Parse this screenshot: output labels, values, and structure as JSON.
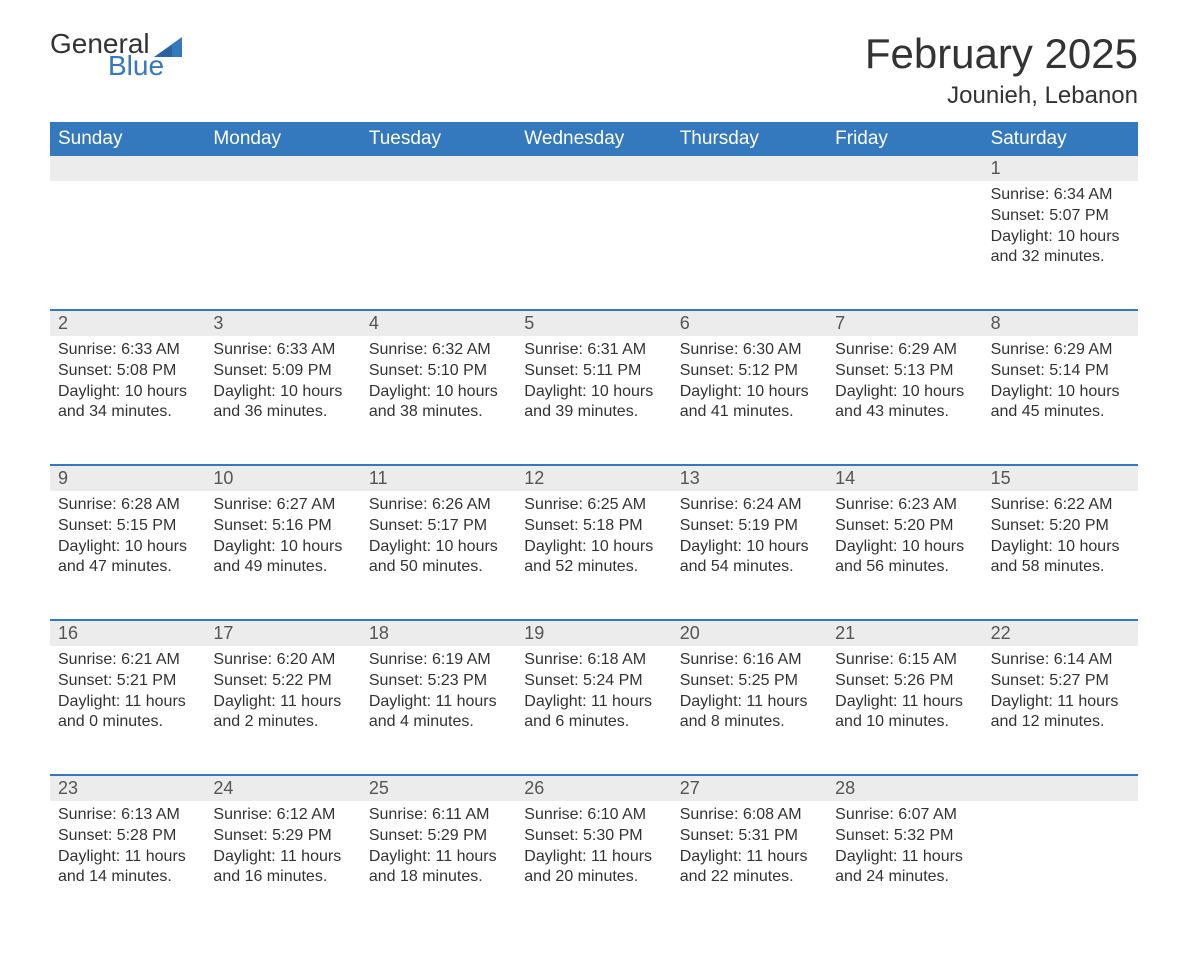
{
  "logo": {
    "text_top": "General",
    "text_bottom": "Blue"
  },
  "title": "February 2025",
  "location": "Jounieh, Lebanon",
  "colors": {
    "header_bg": "#3478bd",
    "header_text": "#ffffff",
    "strip_bg": "#ececec",
    "border": "#3478bd",
    "body_text": "#333333",
    "logo_blue": "#3478bd"
  },
  "weekdays": [
    "Sunday",
    "Monday",
    "Tuesday",
    "Wednesday",
    "Thursday",
    "Friday",
    "Saturday"
  ],
  "weeks": [
    [
      null,
      null,
      null,
      null,
      null,
      null,
      {
        "n": "1",
        "sr": "Sunrise: 6:34 AM",
        "ss": "Sunset: 5:07 PM",
        "dl": "Daylight: 10 hours and 32 minutes."
      }
    ],
    [
      {
        "n": "2",
        "sr": "Sunrise: 6:33 AM",
        "ss": "Sunset: 5:08 PM",
        "dl": "Daylight: 10 hours and 34 minutes."
      },
      {
        "n": "3",
        "sr": "Sunrise: 6:33 AM",
        "ss": "Sunset: 5:09 PM",
        "dl": "Daylight: 10 hours and 36 minutes."
      },
      {
        "n": "4",
        "sr": "Sunrise: 6:32 AM",
        "ss": "Sunset: 5:10 PM",
        "dl": "Daylight: 10 hours and 38 minutes."
      },
      {
        "n": "5",
        "sr": "Sunrise: 6:31 AM",
        "ss": "Sunset: 5:11 PM",
        "dl": "Daylight: 10 hours and 39 minutes."
      },
      {
        "n": "6",
        "sr": "Sunrise: 6:30 AM",
        "ss": "Sunset: 5:12 PM",
        "dl": "Daylight: 10 hours and 41 minutes."
      },
      {
        "n": "7",
        "sr": "Sunrise: 6:29 AM",
        "ss": "Sunset: 5:13 PM",
        "dl": "Daylight: 10 hours and 43 minutes."
      },
      {
        "n": "8",
        "sr": "Sunrise: 6:29 AM",
        "ss": "Sunset: 5:14 PM",
        "dl": "Daylight: 10 hours and 45 minutes."
      }
    ],
    [
      {
        "n": "9",
        "sr": "Sunrise: 6:28 AM",
        "ss": "Sunset: 5:15 PM",
        "dl": "Daylight: 10 hours and 47 minutes."
      },
      {
        "n": "10",
        "sr": "Sunrise: 6:27 AM",
        "ss": "Sunset: 5:16 PM",
        "dl": "Daylight: 10 hours and 49 minutes."
      },
      {
        "n": "11",
        "sr": "Sunrise: 6:26 AM",
        "ss": "Sunset: 5:17 PM",
        "dl": "Daylight: 10 hours and 50 minutes."
      },
      {
        "n": "12",
        "sr": "Sunrise: 6:25 AM",
        "ss": "Sunset: 5:18 PM",
        "dl": "Daylight: 10 hours and 52 minutes."
      },
      {
        "n": "13",
        "sr": "Sunrise: 6:24 AM",
        "ss": "Sunset: 5:19 PM",
        "dl": "Daylight: 10 hours and 54 minutes."
      },
      {
        "n": "14",
        "sr": "Sunrise: 6:23 AM",
        "ss": "Sunset: 5:20 PM",
        "dl": "Daylight: 10 hours and 56 minutes."
      },
      {
        "n": "15",
        "sr": "Sunrise: 6:22 AM",
        "ss": "Sunset: 5:20 PM",
        "dl": "Daylight: 10 hours and 58 minutes."
      }
    ],
    [
      {
        "n": "16",
        "sr": "Sunrise: 6:21 AM",
        "ss": "Sunset: 5:21 PM",
        "dl": "Daylight: 11 hours and 0 minutes."
      },
      {
        "n": "17",
        "sr": "Sunrise: 6:20 AM",
        "ss": "Sunset: 5:22 PM",
        "dl": "Daylight: 11 hours and 2 minutes."
      },
      {
        "n": "18",
        "sr": "Sunrise: 6:19 AM",
        "ss": "Sunset: 5:23 PM",
        "dl": "Daylight: 11 hours and 4 minutes."
      },
      {
        "n": "19",
        "sr": "Sunrise: 6:18 AM",
        "ss": "Sunset: 5:24 PM",
        "dl": "Daylight: 11 hours and 6 minutes."
      },
      {
        "n": "20",
        "sr": "Sunrise: 6:16 AM",
        "ss": "Sunset: 5:25 PM",
        "dl": "Daylight: 11 hours and 8 minutes."
      },
      {
        "n": "21",
        "sr": "Sunrise: 6:15 AM",
        "ss": "Sunset: 5:26 PM",
        "dl": "Daylight: 11 hours and 10 minutes."
      },
      {
        "n": "22",
        "sr": "Sunrise: 6:14 AM",
        "ss": "Sunset: 5:27 PM",
        "dl": "Daylight: 11 hours and 12 minutes."
      }
    ],
    [
      {
        "n": "23",
        "sr": "Sunrise: 6:13 AM",
        "ss": "Sunset: 5:28 PM",
        "dl": "Daylight: 11 hours and 14 minutes."
      },
      {
        "n": "24",
        "sr": "Sunrise: 6:12 AM",
        "ss": "Sunset: 5:29 PM",
        "dl": "Daylight: 11 hours and 16 minutes."
      },
      {
        "n": "25",
        "sr": "Sunrise: 6:11 AM",
        "ss": "Sunset: 5:29 PM",
        "dl": "Daylight: 11 hours and 18 minutes."
      },
      {
        "n": "26",
        "sr": "Sunrise: 6:10 AM",
        "ss": "Sunset: 5:30 PM",
        "dl": "Daylight: 11 hours and 20 minutes."
      },
      {
        "n": "27",
        "sr": "Sunrise: 6:08 AM",
        "ss": "Sunset: 5:31 PM",
        "dl": "Daylight: 11 hours and 22 minutes."
      },
      {
        "n": "28",
        "sr": "Sunrise: 6:07 AM",
        "ss": "Sunset: 5:32 PM",
        "dl": "Daylight: 11 hours and 24 minutes."
      },
      null
    ]
  ]
}
